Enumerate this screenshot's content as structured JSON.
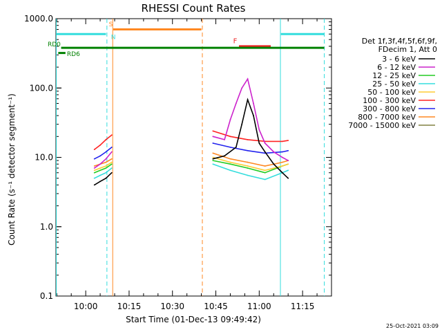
{
  "chart_data": {
    "type": "line",
    "title": "RHESSI Count Rates",
    "xlabel": "Start Time (01-Dec-13 09:49:42)",
    "ylabel": "Count Rate (s⁻¹ detector segment⁻¹)",
    "y_scale": "log",
    "ylim": [
      0.1,
      1000
    ],
    "xlim": [
      "09:49:42",
      "11:25:00"
    ],
    "y_ticks": [
      "0.1",
      "1.0",
      "10.0",
      "100.0",
      "1000.0"
    ],
    "x_ticks": [
      "10:00",
      "10:15",
      "10:30",
      "10:45",
      "11:00",
      "11:15"
    ],
    "grid": false,
    "legend_position": "right",
    "legend_header": [
      "Det 1f,3f,4f,5f,6f,9f,",
      "FDecim 1, Att 0"
    ],
    "timestamp": "25-Oct-2021 03:09",
    "series": [
      {
        "name": "3 - 6 keV",
        "color": "#000000",
        "times": [
          "10:03",
          "10:05",
          "10:07",
          "10:09",
          "10:44",
          "10:48",
          "10:52",
          "10:54",
          "10:56",
          "10:58",
          "11:00",
          "11:02",
          "11:05",
          "11:08",
          "11:10"
        ],
        "values": [
          4.0,
          4.5,
          5.0,
          6.0,
          9.5,
          10.5,
          14.0,
          30.0,
          68.0,
          40.0,
          16.0,
          12.0,
          8.0,
          6.0,
          5.0
        ]
      },
      {
        "name": "6 - 12 keV",
        "color": "#cc22cc",
        "times": [
          "10:03",
          "10:05",
          "10:07",
          "10:09",
          "10:44",
          "10:48",
          "10:50",
          "10:52",
          "10:54",
          "10:56",
          "10:58",
          "11:00",
          "11:02",
          "11:05",
          "11:08",
          "11:10"
        ],
        "values": [
          7.0,
          8.0,
          9.5,
          12.0,
          20.0,
          18.0,
          35.0,
          60.0,
          100.0,
          135.0,
          60.0,
          25.0,
          16.0,
          12.0,
          10.0,
          9.0
        ]
      },
      {
        "name": "12 - 25 keV",
        "color": "#22cc22",
        "times": [
          "10:03",
          "10:05",
          "10:07",
          "10:09",
          "10:44",
          "10:50",
          "10:56",
          "11:02",
          "11:08",
          "11:10"
        ],
        "values": [
          6.0,
          6.5,
          7.0,
          8.0,
          9.0,
          8.0,
          7.0,
          6.0,
          7.5,
          8.0
        ]
      },
      {
        "name": "25 - 50 keV",
        "color": "#33dddd",
        "times": [
          "10:03",
          "10:05",
          "10:07",
          "10:09",
          "10:44",
          "10:50",
          "10:56",
          "11:02",
          "11:08",
          "11:10"
        ],
        "values": [
          5.0,
          5.5,
          6.0,
          7.0,
          8.0,
          6.5,
          5.5,
          4.8,
          6.0,
          6.5
        ]
      },
      {
        "name": "50 - 100 keV",
        "color": "#ffcc33",
        "times": [
          "10:03",
          "10:05",
          "10:07",
          "10:09",
          "10:44",
          "10:50",
          "10:56",
          "11:02",
          "11:08",
          "11:10"
        ],
        "values": [
          6.5,
          7.0,
          7.5,
          8.5,
          10.0,
          8.5,
          7.5,
          6.5,
          7.5,
          8.0
        ]
      },
      {
        "name": "100 - 300 keV",
        "color": "#ff2222",
        "times": [
          "10:03",
          "10:05",
          "10:07",
          "10:09",
          "10:44",
          "10:50",
          "10:56",
          "11:02",
          "11:08",
          "11:10"
        ],
        "values": [
          13.0,
          15.0,
          18.0,
          21.0,
          24.0,
          20.0,
          18.0,
          17.0,
          17.0,
          17.5
        ]
      },
      {
        "name": "300 - 800 keV",
        "color": "#2222ee",
        "times": [
          "10:03",
          "10:05",
          "10:07",
          "10:09",
          "10:44",
          "10:50",
          "10:56",
          "11:02",
          "11:08",
          "11:10"
        ],
        "values": [
          9.5,
          10.5,
          12.0,
          14.0,
          16.0,
          14.0,
          12.5,
          11.5,
          12.0,
          12.5
        ]
      },
      {
        "name": "800 - 7000 keV",
        "color": "#ff8822",
        "times": [
          "10:03",
          "10:05",
          "10:07",
          "10:09",
          "10:44",
          "10:50",
          "10:56",
          "11:02",
          "11:08",
          "11:10"
        ],
        "values": [
          7.5,
          8.0,
          8.5,
          9.5,
          11.5,
          9.5,
          8.5,
          7.5,
          8.5,
          9.0
        ]
      },
      {
        "name": "7000 - 15000 keV",
        "color": "#808040",
        "times": [],
        "values": []
      }
    ],
    "annotations": {
      "labels": [
        {
          "text": "S",
          "color": "#ff8822"
        },
        {
          "text": "N",
          "color": "#33dddd"
        },
        {
          "text": "F",
          "color": "#ee2222"
        },
        {
          "text": "RD0",
          "color": "#008000"
        },
        {
          "text": "RD6",
          "color": "#008000"
        }
      ]
    }
  }
}
